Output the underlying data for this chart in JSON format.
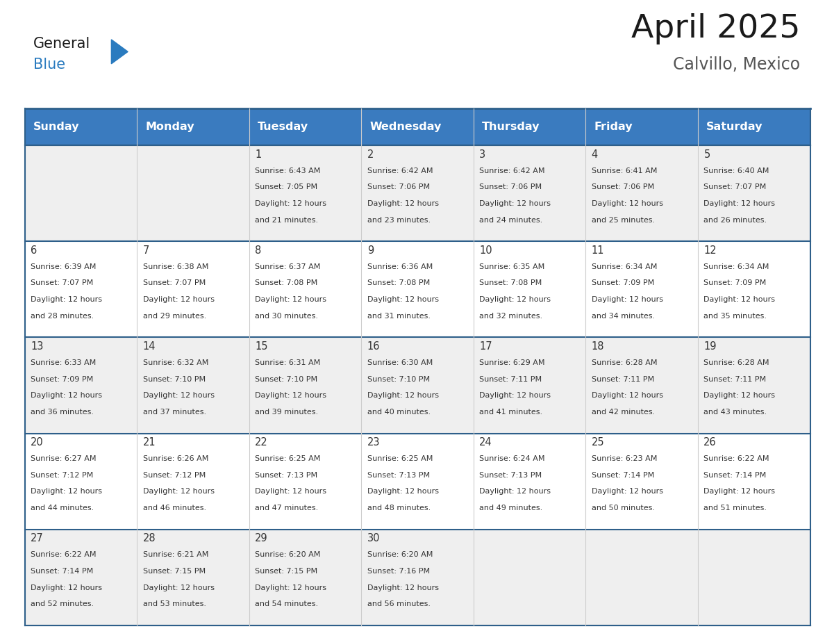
{
  "title": "April 2025",
  "subtitle": "Calvillo, Mexico",
  "days_of_week": [
    "Sunday",
    "Monday",
    "Tuesday",
    "Wednesday",
    "Thursday",
    "Friday",
    "Saturday"
  ],
  "header_bg": "#3a7bbf",
  "header_text_color": "#ffffff",
  "cell_bg_odd": "#efefef",
  "cell_bg_even": "#ffffff",
  "grid_line_color": "#2e5f8a",
  "text_color": "#333333",
  "day_num_color": "#333333",
  "logo_general_color": "#1a1a1a",
  "logo_blue_color": "#2a7bbf",
  "title_color": "#1a1a1a",
  "subtitle_color": "#555555",
  "calendar_data": [
    [
      {
        "day": null,
        "sunrise": null,
        "sunset": null,
        "daylight_min": null
      },
      {
        "day": null,
        "sunrise": null,
        "sunset": null,
        "daylight_min": null
      },
      {
        "day": 1,
        "sunrise": "6:43 AM",
        "sunset": "7:05 PM",
        "daylight_min": "21 minutes."
      },
      {
        "day": 2,
        "sunrise": "6:42 AM",
        "sunset": "7:06 PM",
        "daylight_min": "23 minutes."
      },
      {
        "day": 3,
        "sunrise": "6:42 AM",
        "sunset": "7:06 PM",
        "daylight_min": "24 minutes."
      },
      {
        "day": 4,
        "sunrise": "6:41 AM",
        "sunset": "7:06 PM",
        "daylight_min": "25 minutes."
      },
      {
        "day": 5,
        "sunrise": "6:40 AM",
        "sunset": "7:07 PM",
        "daylight_min": "26 minutes."
      }
    ],
    [
      {
        "day": 6,
        "sunrise": "6:39 AM",
        "sunset": "7:07 PM",
        "daylight_min": "28 minutes."
      },
      {
        "day": 7,
        "sunrise": "6:38 AM",
        "sunset": "7:07 PM",
        "daylight_min": "29 minutes."
      },
      {
        "day": 8,
        "sunrise": "6:37 AM",
        "sunset": "7:08 PM",
        "daylight_min": "30 minutes."
      },
      {
        "day": 9,
        "sunrise": "6:36 AM",
        "sunset": "7:08 PM",
        "daylight_min": "31 minutes."
      },
      {
        "day": 10,
        "sunrise": "6:35 AM",
        "sunset": "7:08 PM",
        "daylight_min": "32 minutes."
      },
      {
        "day": 11,
        "sunrise": "6:34 AM",
        "sunset": "7:09 PM",
        "daylight_min": "34 minutes."
      },
      {
        "day": 12,
        "sunrise": "6:34 AM",
        "sunset": "7:09 PM",
        "daylight_min": "35 minutes."
      }
    ],
    [
      {
        "day": 13,
        "sunrise": "6:33 AM",
        "sunset": "7:09 PM",
        "daylight_min": "36 minutes."
      },
      {
        "day": 14,
        "sunrise": "6:32 AM",
        "sunset": "7:10 PM",
        "daylight_min": "37 minutes."
      },
      {
        "day": 15,
        "sunrise": "6:31 AM",
        "sunset": "7:10 PM",
        "daylight_min": "39 minutes."
      },
      {
        "day": 16,
        "sunrise": "6:30 AM",
        "sunset": "7:10 PM",
        "daylight_min": "40 minutes."
      },
      {
        "day": 17,
        "sunrise": "6:29 AM",
        "sunset": "7:11 PM",
        "daylight_min": "41 minutes."
      },
      {
        "day": 18,
        "sunrise": "6:28 AM",
        "sunset": "7:11 PM",
        "daylight_min": "42 minutes."
      },
      {
        "day": 19,
        "sunrise": "6:28 AM",
        "sunset": "7:11 PM",
        "daylight_min": "43 minutes."
      }
    ],
    [
      {
        "day": 20,
        "sunrise": "6:27 AM",
        "sunset": "7:12 PM",
        "daylight_min": "44 minutes."
      },
      {
        "day": 21,
        "sunrise": "6:26 AM",
        "sunset": "7:12 PM",
        "daylight_min": "46 minutes."
      },
      {
        "day": 22,
        "sunrise": "6:25 AM",
        "sunset": "7:13 PM",
        "daylight_min": "47 minutes."
      },
      {
        "day": 23,
        "sunrise": "6:25 AM",
        "sunset": "7:13 PM",
        "daylight_min": "48 minutes."
      },
      {
        "day": 24,
        "sunrise": "6:24 AM",
        "sunset": "7:13 PM",
        "daylight_min": "49 minutes."
      },
      {
        "day": 25,
        "sunrise": "6:23 AM",
        "sunset": "7:14 PM",
        "daylight_min": "50 minutes."
      },
      {
        "day": 26,
        "sunrise": "6:22 AM",
        "sunset": "7:14 PM",
        "daylight_min": "51 minutes."
      }
    ],
    [
      {
        "day": 27,
        "sunrise": "6:22 AM",
        "sunset": "7:14 PM",
        "daylight_min": "52 minutes."
      },
      {
        "day": 28,
        "sunrise": "6:21 AM",
        "sunset": "7:15 PM",
        "daylight_min": "53 minutes."
      },
      {
        "day": 29,
        "sunrise": "6:20 AM",
        "sunset": "7:15 PM",
        "daylight_min": "54 minutes."
      },
      {
        "day": 30,
        "sunrise": "6:20 AM",
        "sunset": "7:16 PM",
        "daylight_min": "56 minutes."
      },
      {
        "day": null,
        "sunrise": null,
        "sunset": null,
        "daylight_min": null
      },
      {
        "day": null,
        "sunrise": null,
        "sunset": null,
        "daylight_min": null
      },
      {
        "day": null,
        "sunrise": null,
        "sunset": null,
        "daylight_min": null
      }
    ]
  ]
}
